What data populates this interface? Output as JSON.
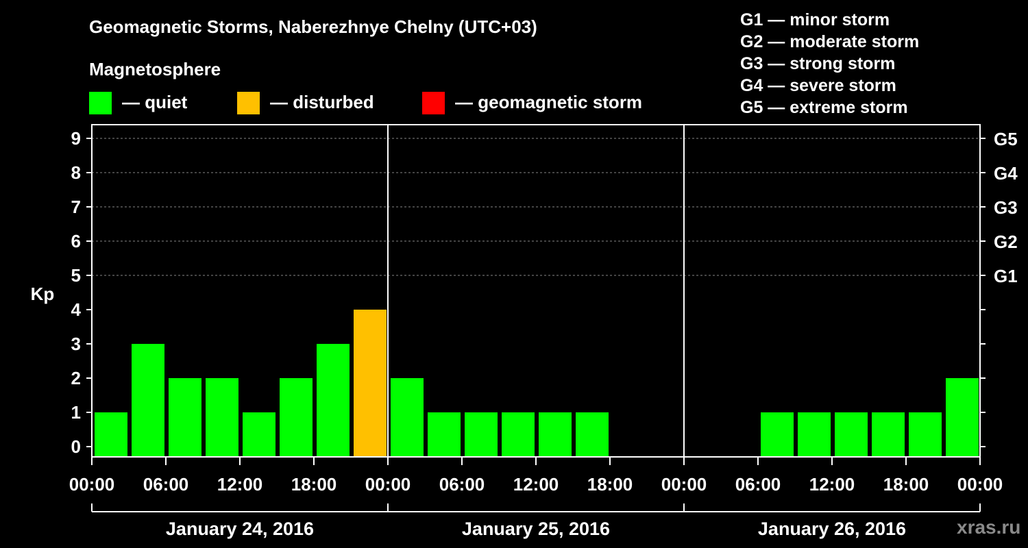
{
  "chart_data": {
    "type": "bar",
    "title": "Geomagnetic Storms, Naberezhnye Chelny (UTC+03)",
    "ylabel": "Kp",
    "ylim": [
      0,
      9
    ],
    "y_ticks": [
      "0",
      "1",
      "2",
      "3",
      "4",
      "5",
      "6",
      "7",
      "8",
      "9"
    ],
    "right_axis_labels": [
      {
        "kp": 5,
        "label": "G1"
      },
      {
        "kp": 6,
        "label": "G2"
      },
      {
        "kp": 7,
        "label": "G3"
      },
      {
        "kp": 8,
        "label": "G4"
      },
      {
        "kp": 9,
        "label": "G5"
      }
    ],
    "x_tick_labels": [
      "00:00",
      "06:00",
      "12:00",
      "18:00",
      "00:00",
      "06:00",
      "12:00",
      "18:00",
      "00:00",
      "06:00",
      "12:00",
      "18:00",
      "00:00"
    ],
    "days": [
      "January 24, 2016",
      "January 25, 2016",
      "January 26, 2016"
    ],
    "bars": [
      {
        "day": 0,
        "slot": 0,
        "kp": 1,
        "status": "quiet"
      },
      {
        "day": 0,
        "slot": 1,
        "kp": 3,
        "status": "quiet"
      },
      {
        "day": 0,
        "slot": 2,
        "kp": 2,
        "status": "quiet"
      },
      {
        "day": 0,
        "slot": 3,
        "kp": 2,
        "status": "quiet"
      },
      {
        "day": 0,
        "slot": 4,
        "kp": 1,
        "status": "quiet"
      },
      {
        "day": 0,
        "slot": 5,
        "kp": 2,
        "status": "quiet"
      },
      {
        "day": 0,
        "slot": 6,
        "kp": 3,
        "status": "quiet"
      },
      {
        "day": 0,
        "slot": 7,
        "kp": 4,
        "status": "disturbed"
      },
      {
        "day": 1,
        "slot": 0,
        "kp": 2,
        "status": "quiet"
      },
      {
        "day": 1,
        "slot": 1,
        "kp": 1,
        "status": "quiet"
      },
      {
        "day": 1,
        "slot": 2,
        "kp": 1,
        "status": "quiet"
      },
      {
        "day": 1,
        "slot": 3,
        "kp": 1,
        "status": "quiet"
      },
      {
        "day": 1,
        "slot": 4,
        "kp": 1,
        "status": "quiet"
      },
      {
        "day": 1,
        "slot": 5,
        "kp": 1,
        "status": "quiet"
      },
      {
        "day": 2,
        "slot": 2,
        "kp": 1,
        "status": "quiet"
      },
      {
        "day": 2,
        "slot": 3,
        "kp": 1,
        "status": "quiet"
      },
      {
        "day": 2,
        "slot": 4,
        "kp": 1,
        "status": "quiet"
      },
      {
        "day": 2,
        "slot": 5,
        "kp": 1,
        "status": "quiet"
      },
      {
        "day": 2,
        "slot": 6,
        "kp": 1,
        "status": "quiet"
      },
      {
        "day": 2,
        "slot": 7,
        "kp": 2,
        "status": "quiet"
      }
    ]
  },
  "legend": {
    "heading": "Magnetosphere",
    "items": [
      {
        "label": "— quiet",
        "color": "#00ff00"
      },
      {
        "label": "— disturbed",
        "color": "#ffc000"
      },
      {
        "label": "— geomagnetic storm",
        "color": "#ff0000"
      }
    ]
  },
  "storm_scale": [
    "G1 — minor storm",
    "G2 — moderate storm",
    "G3 — strong storm",
    "G4 — severe storm",
    "G5 — extreme storm"
  ],
  "colors": {
    "quiet": "#00ff00",
    "disturbed": "#ffc000",
    "storm": "#ff0000"
  },
  "watermark": "xras.ru"
}
